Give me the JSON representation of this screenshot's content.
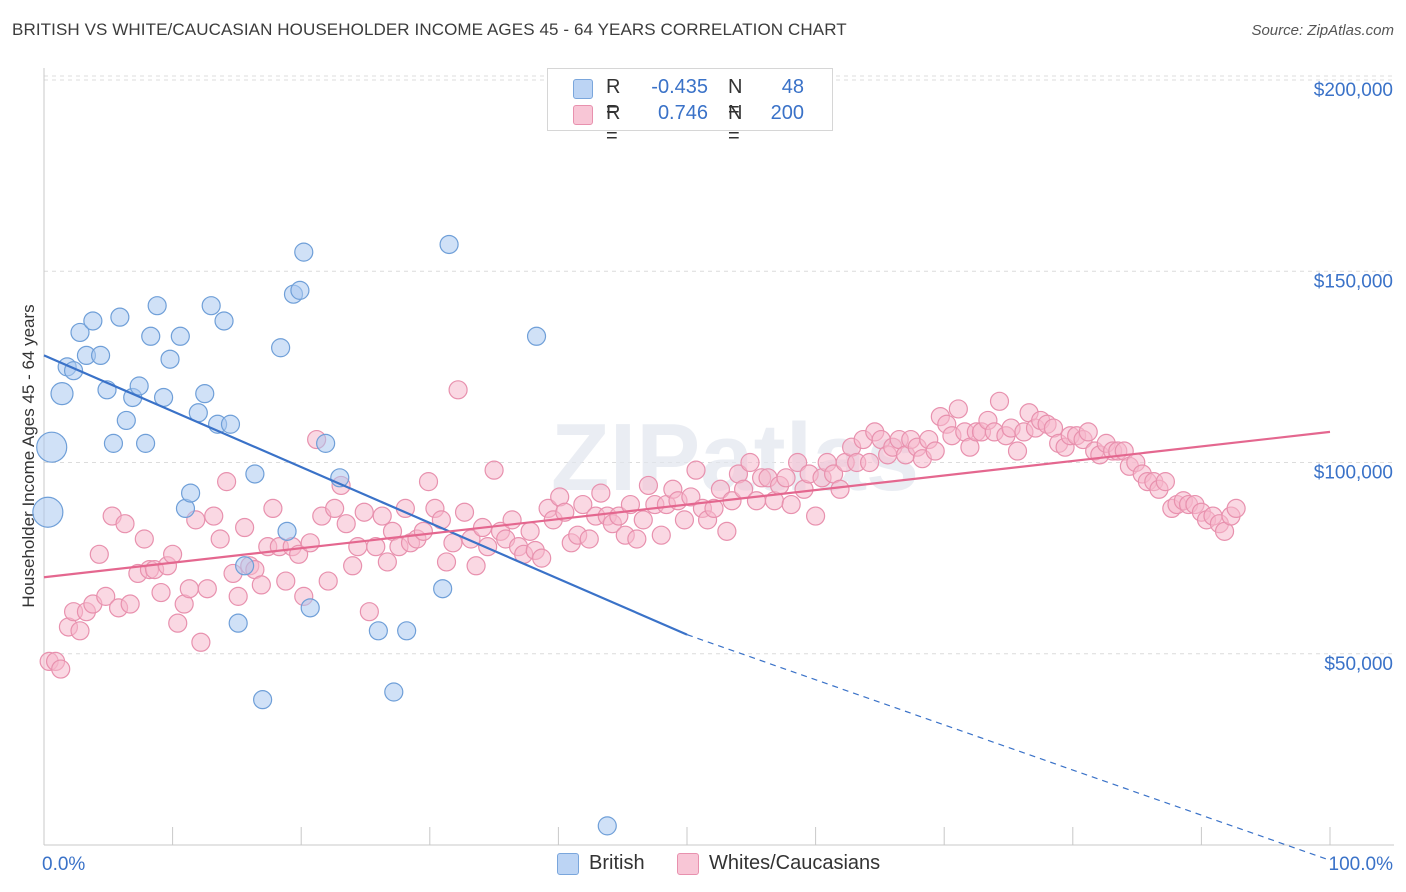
{
  "header": {
    "title": "BRITISH VS WHITE/CAUCASIAN HOUSEHOLDER INCOME AGES 45 - 64 YEARS CORRELATION CHART",
    "source": "Source: ZipAtlas.com"
  },
  "watermark": "ZIPatlas",
  "legend": {
    "british": {
      "r_label": "R =",
      "r_value": "-0.435",
      "n_label": "N =",
      "n_value": "48",
      "color": "#aac8f0"
    },
    "whites": {
      "r_label": "R =",
      "r_value": "0.746",
      "n_label": "N =",
      "n_value": "200",
      "color": "#f5b8cc"
    }
  },
  "bottom_legend": {
    "british_label": "British",
    "whites_label": "Whites/Caucasians"
  },
  "chart_data": {
    "type": "scatter",
    "title": "BRITISH VS WHITE/CAUCASIAN HOUSEHOLDER INCOME AGES 45 - 64 YEARS CORRELATION CHART",
    "xlabel": "",
    "ylabel": "Householder Income Ages 45 - 64 years",
    "xlim": [
      0,
      100
    ],
    "ylim": [
      0,
      200000
    ],
    "x_tick_labels": [
      "0.0%",
      "100.0%"
    ],
    "y_ticks": [
      50000,
      100000,
      150000,
      200000
    ],
    "y_tick_labels": [
      "$50,000",
      "$100,000",
      "$150,000",
      "$200,000"
    ],
    "grid": "dashed horizontal",
    "legend_position": "top-center",
    "series": [
      {
        "name": "British",
        "color": "#aac8f0",
        "stroke": "#6f9fd8",
        "trend": {
          "x": [
            0,
            50
          ],
          "y": [
            128000,
            55000
          ],
          "dashed_extension_to": [
            100,
            -4000
          ],
          "color": "#3a72c8"
        },
        "points": [
          [
            0.3,
            87
          ],
          [
            0.6,
            104
          ],
          [
            1.4,
            118
          ],
          [
            1.8,
            125
          ],
          [
            2.3,
            124
          ],
          [
            2.8,
            134
          ],
          [
            3.3,
            128
          ],
          [
            3.8,
            137
          ],
          [
            4.4,
            128
          ],
          [
            4.9,
            119
          ],
          [
            5.4,
            105
          ],
          [
            5.9,
            138
          ],
          [
            6.4,
            111
          ],
          [
            6.9,
            117
          ],
          [
            7.4,
            120
          ],
          [
            7.9,
            105
          ],
          [
            8.3,
            133
          ],
          [
            8.8,
            141
          ],
          [
            9.3,
            117
          ],
          [
            9.8,
            127
          ],
          [
            10.6,
            133
          ],
          [
            11.0,
            88
          ],
          [
            11.4,
            92
          ],
          [
            12.0,
            113
          ],
          [
            12.5,
            118
          ],
          [
            13.0,
            141
          ],
          [
            13.5,
            110
          ],
          [
            14.0,
            137
          ],
          [
            14.5,
            110
          ],
          [
            15.1,
            58
          ],
          [
            15.6,
            73
          ],
          [
            16.4,
            97
          ],
          [
            17.0,
            38
          ],
          [
            18.4,
            130
          ],
          [
            18.9,
            82
          ],
          [
            19.4,
            144
          ],
          [
            19.9,
            145
          ],
          [
            20.2,
            155
          ],
          [
            20.7,
            62
          ],
          [
            21.9,
            105
          ],
          [
            23.0,
            96
          ],
          [
            26.0,
            56
          ],
          [
            27.2,
            40
          ],
          [
            28.2,
            56
          ],
          [
            31.0,
            67
          ],
          [
            31.5,
            157
          ],
          [
            38.3,
            133
          ],
          [
            43.8,
            5
          ]
        ]
      },
      {
        "name": "Whites/Caucasians",
        "color": "#f5b8cc",
        "stroke": "#e891ae",
        "trend": {
          "x": [
            0,
            100
          ],
          "y": [
            70000,
            108000
          ],
          "color": "#e4678f"
        },
        "points": [
          [
            0.4,
            48
          ],
          [
            0.9,
            48
          ],
          [
            1.3,
            46
          ],
          [
            1.9,
            57
          ],
          [
            2.3,
            61
          ],
          [
            2.8,
            56
          ],
          [
            3.3,
            61
          ],
          [
            3.8,
            63
          ],
          [
            4.3,
            76
          ],
          [
            4.8,
            65
          ],
          [
            5.3,
            86
          ],
          [
            5.8,
            62
          ],
          [
            6.3,
            84
          ],
          [
            6.7,
            63
          ],
          [
            7.3,
            71
          ],
          [
            7.8,
            80
          ],
          [
            8.2,
            72
          ],
          [
            8.6,
            72
          ],
          [
            9.1,
            66
          ],
          [
            9.6,
            73
          ],
          [
            10.0,
            76
          ],
          [
            10.4,
            58
          ],
          [
            10.9,
            63
          ],
          [
            11.3,
            67
          ],
          [
            11.8,
            85
          ],
          [
            12.2,
            53
          ],
          [
            12.7,
            67
          ],
          [
            13.2,
            86
          ],
          [
            13.7,
            80
          ],
          [
            14.2,
            95
          ],
          [
            14.7,
            71
          ],
          [
            15.1,
            65
          ],
          [
            15.6,
            83
          ],
          [
            16.0,
            73
          ],
          [
            16.4,
            72
          ],
          [
            16.9,
            68
          ],
          [
            17.4,
            78
          ],
          [
            17.8,
            88
          ],
          [
            18.3,
            78
          ],
          [
            18.8,
            69
          ],
          [
            19.3,
            78
          ],
          [
            19.8,
            76
          ],
          [
            20.2,
            65
          ],
          [
            20.7,
            79
          ],
          [
            21.2,
            106
          ],
          [
            21.6,
            86
          ],
          [
            22.1,
            69
          ],
          [
            22.6,
            88
          ],
          [
            23.1,
            94
          ],
          [
            23.5,
            84
          ],
          [
            24.0,
            73
          ],
          [
            24.4,
            78
          ],
          [
            24.9,
            87
          ],
          [
            25.3,
            61
          ],
          [
            25.8,
            78
          ],
          [
            26.3,
            86
          ],
          [
            26.7,
            74
          ],
          [
            27.1,
            82
          ],
          [
            27.6,
            78
          ],
          [
            28.1,
            88
          ],
          [
            28.5,
            79
          ],
          [
            29.0,
            80
          ],
          [
            29.5,
            82
          ],
          [
            29.9,
            95
          ],
          [
            30.4,
            88
          ],
          [
            30.9,
            85
          ],
          [
            31.3,
            74
          ],
          [
            31.8,
            79
          ],
          [
            32.2,
            119
          ],
          [
            32.7,
            87
          ],
          [
            33.2,
            80
          ],
          [
            33.6,
            73
          ],
          [
            34.1,
            83
          ],
          [
            34.5,
            78
          ],
          [
            35.0,
            98
          ],
          [
            35.5,
            82
          ],
          [
            35.9,
            80
          ],
          [
            36.4,
            85
          ],
          [
            36.9,
            78
          ],
          [
            37.3,
            76
          ],
          [
            37.8,
            82
          ],
          [
            38.2,
            77
          ],
          [
            38.7,
            75
          ],
          [
            39.2,
            88
          ],
          [
            39.6,
            85
          ],
          [
            40.1,
            91
          ],
          [
            40.5,
            87
          ],
          [
            41.0,
            79
          ],
          [
            41.5,
            81
          ],
          [
            41.9,
            89
          ],
          [
            42.4,
            80
          ],
          [
            42.9,
            86
          ],
          [
            43.3,
            92
          ],
          [
            43.8,
            86
          ],
          [
            44.2,
            84
          ],
          [
            44.7,
            86
          ],
          [
            45.2,
            81
          ],
          [
            45.6,
            89
          ],
          [
            46.1,
            80
          ],
          [
            46.6,
            85
          ],
          [
            47.0,
            94
          ],
          [
            47.5,
            89
          ],
          [
            48.0,
            81
          ],
          [
            48.4,
            89
          ],
          [
            48.9,
            93
          ],
          [
            49.3,
            90
          ],
          [
            49.8,
            85
          ],
          [
            50.3,
            91
          ],
          [
            50.7,
            98
          ],
          [
            51.2,
            88
          ],
          [
            51.6,
            85
          ],
          [
            52.1,
            88
          ],
          [
            52.6,
            93
          ],
          [
            53.1,
            82
          ],
          [
            53.5,
            90
          ],
          [
            54.0,
            97
          ],
          [
            54.4,
            93
          ],
          [
            54.9,
            100
          ],
          [
            55.4,
            90
          ],
          [
            55.8,
            96
          ],
          [
            56.3,
            96
          ],
          [
            56.8,
            90
          ],
          [
            57.2,
            94
          ],
          [
            57.7,
            96
          ],
          [
            58.1,
            89
          ],
          [
            58.6,
            100
          ],
          [
            59.1,
            93
          ],
          [
            59.5,
            97
          ],
          [
            60.0,
            86
          ],
          [
            60.5,
            96
          ],
          [
            60.9,
            100
          ],
          [
            61.4,
            97
          ],
          [
            61.9,
            93
          ],
          [
            62.3,
            100
          ],
          [
            62.8,
            104
          ],
          [
            63.2,
            100
          ],
          [
            63.7,
            106
          ],
          [
            64.2,
            100
          ],
          [
            64.6,
            108
          ],
          [
            65.1,
            106
          ],
          [
            65.6,
            102
          ],
          [
            66.0,
            104
          ],
          [
            66.5,
            106
          ],
          [
            67.0,
            102
          ],
          [
            67.4,
            106
          ],
          [
            67.9,
            104
          ],
          [
            68.3,
            101
          ],
          [
            68.8,
            106
          ],
          [
            69.3,
            103
          ],
          [
            69.7,
            112
          ],
          [
            70.2,
            110
          ],
          [
            70.6,
            107
          ],
          [
            71.1,
            114
          ],
          [
            71.6,
            108
          ],
          [
            72.0,
            104
          ],
          [
            72.5,
            108
          ],
          [
            72.9,
            108
          ],
          [
            73.4,
            111
          ],
          [
            73.9,
            108
          ],
          [
            74.3,
            116
          ],
          [
            74.8,
            107
          ],
          [
            75.2,
            109
          ],
          [
            75.7,
            103
          ],
          [
            76.2,
            108
          ],
          [
            76.6,
            113
          ],
          [
            77.1,
            109
          ],
          [
            77.5,
            111
          ],
          [
            78.0,
            110
          ],
          [
            78.5,
            109
          ],
          [
            78.9,
            105
          ],
          [
            79.4,
            104
          ],
          [
            79.8,
            107
          ],
          [
            80.3,
            107
          ],
          [
            80.8,
            106
          ],
          [
            81.2,
            108
          ],
          [
            81.7,
            103
          ],
          [
            82.1,
            102
          ],
          [
            82.6,
            105
          ],
          [
            83.1,
            103
          ],
          [
            83.5,
            103
          ],
          [
            84.0,
            103
          ],
          [
            84.4,
            99
          ],
          [
            84.9,
            100
          ],
          [
            85.4,
            97
          ],
          [
            85.8,
            95
          ],
          [
            86.3,
            95
          ],
          [
            86.7,
            93
          ],
          [
            87.2,
            95
          ],
          [
            87.7,
            88
          ],
          [
            88.1,
            89
          ],
          [
            88.6,
            90
          ],
          [
            89.0,
            89
          ],
          [
            89.5,
            89
          ],
          [
            90.0,
            87
          ],
          [
            90.4,
            85
          ],
          [
            90.9,
            86
          ],
          [
            91.4,
            84
          ],
          [
            91.8,
            82
          ],
          [
            92.3,
            86
          ],
          [
            92.7,
            88
          ]
        ]
      }
    ]
  }
}
